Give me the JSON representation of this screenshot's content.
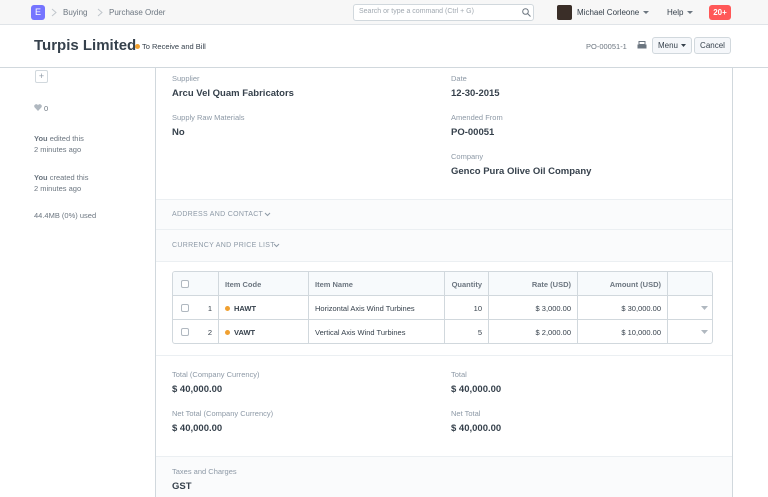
{
  "navbar": {
    "logo": "E",
    "breadcrumbs": [
      "Buying",
      "Purchase Order"
    ],
    "search_placeholder": "Search or type a command (Ctrl + G)",
    "user": "Michael Corleone",
    "help": "Help",
    "notifications": "20+"
  },
  "header": {
    "title": "Turpis Limited",
    "status": "To Receive and Bill",
    "doc_id": "PO-00051-1",
    "menu": "Menu",
    "cancel": "Cancel"
  },
  "sidebar": {
    "add": "+",
    "likes": "0",
    "activity": [
      {
        "user": "You",
        "action": "edited this",
        "time": "2 minutes ago"
      },
      {
        "user": "You",
        "action": "created this",
        "time": "2 minutes ago"
      }
    ],
    "usage": "44.4MB (0%) used"
  },
  "form": {
    "fields": [
      {
        "label": "Supplier",
        "value": "Arcu Vel Quam Fabricators"
      },
      {
        "label": "Supply Raw Materials",
        "value": "No"
      },
      {
        "label": "Date",
        "value": "12-30-2015"
      },
      {
        "label": "Amended From",
        "value": "PO-00051"
      },
      {
        "label": "Company",
        "value": "Genco Pura Olive Oil Company"
      }
    ],
    "sections": [
      "ADDRESS AND CONTACT",
      "CURRENCY AND PRICE LIST"
    ],
    "items": {
      "columns": [
        "Item Code",
        "Item Name",
        "Quantity",
        "Rate (USD)",
        "Amount (USD)"
      ],
      "rows": [
        [
          1,
          "HAWT",
          "Horizontal Axis Wind Turbines",
          10,
          "$ 3,000.00",
          "$ 30,000.00"
        ],
        [
          2,
          "VAWT",
          "Vertical Axis Wind Turbines",
          5,
          "$ 2,000.00",
          "$ 10,000.00"
        ]
      ]
    },
    "totals": [
      {
        "label": "Total (Company Currency)",
        "value": "$ 40,000.00"
      },
      {
        "label": "Net Total (Company Currency)",
        "value": "$ 40,000.00"
      },
      {
        "label": "Total",
        "value": "$ 40,000.00"
      },
      {
        "label": "Net Total",
        "value": "$ 40,000.00"
      }
    ],
    "taxes": {
      "label": "Taxes and Charges",
      "value": "GST"
    }
  }
}
